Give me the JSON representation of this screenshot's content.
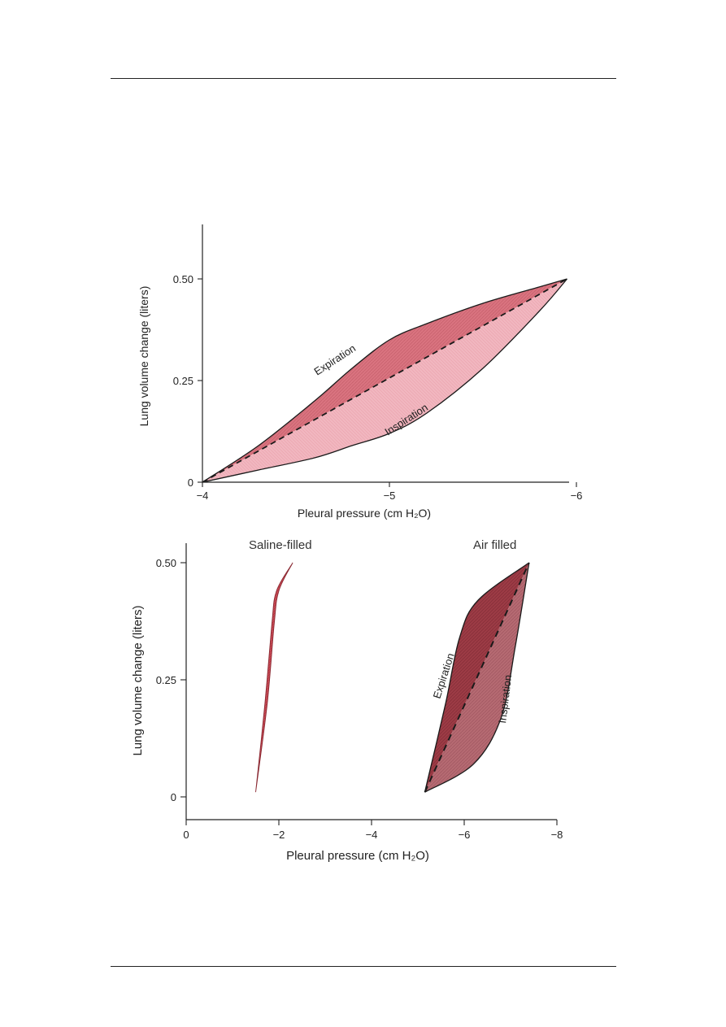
{
  "chart_data": [
    {
      "type": "area",
      "xlabel": "Pleural pressure (cm H₂O)",
      "ylabel": "Lung volume change (liters)",
      "xlim": [
        -4,
        -6
      ],
      "ylim": [
        0,
        0.6
      ],
      "x_ticks": [
        "−4",
        "−5",
        "−6"
      ],
      "y_ticks": [
        "0",
        "0.25",
        "0.50"
      ],
      "series": [
        {
          "name": "Expiration",
          "x": [
            -4,
            -4.3,
            -4.6,
            -4.8,
            -5.0,
            -5.2,
            -5.5,
            -5.8,
            -5.95
          ],
          "y": [
            0,
            0.09,
            0.2,
            0.28,
            0.35,
            0.39,
            0.44,
            0.48,
            0.5
          ]
        },
        {
          "name": "Inspiration",
          "x": [
            -4,
            -4.3,
            -4.6,
            -4.8,
            -5.0,
            -5.2,
            -5.5,
            -5.8,
            -5.95
          ],
          "y": [
            0,
            0.03,
            0.06,
            0.09,
            0.12,
            0.17,
            0.28,
            0.42,
            0.5
          ]
        }
      ],
      "colors": {
        "expiration_fill": "#d9737f",
        "inspiration_fill": "#f1b6bf",
        "stroke": "#1a1a1a"
      }
    },
    {
      "type": "area",
      "xlabel": "Pleural pressure (cm H₂O)",
      "ylabel": "Lung volume change (liters)",
      "xlim": [
        0,
        -8
      ],
      "ylim": [
        -0.05,
        0.5
      ],
      "x_ticks": [
        "0",
        "−2",
        "−4",
        "−6",
        "−8"
      ],
      "y_ticks": [
        "0",
        "0.25",
        "0.50"
      ],
      "panels": [
        {
          "label": "Saline-filled",
          "series": [
            {
              "x": [
                -1.5,
                -1.75,
                -1.9,
                -2.0,
                -2.3
              ],
              "y": [
                0.01,
                0.2,
                0.37,
                0.44,
                0.5
              ]
            },
            {
              "x": [
                -1.5,
                -1.7,
                -1.85,
                -1.95,
                -2.3
              ],
              "y": [
                0.01,
                0.2,
                0.37,
                0.44,
                0.5
              ]
            }
          ],
          "colors": {
            "fill": "#c94a55"
          }
        },
        {
          "label": "Air filled",
          "series": [
            {
              "name": "Expiration",
              "x": [
                -5.15,
                -5.6,
                -5.9,
                -6.3,
                -7.4
              ],
              "y": [
                0.01,
                0.2,
                0.34,
                0.42,
                0.5
              ]
            },
            {
              "name": "Inspiration",
              "x": [
                -5.15,
                -6.2,
                -6.8,
                -7.1,
                -7.4
              ],
              "y": [
                0.01,
                0.07,
                0.17,
                0.32,
                0.5
              ]
            }
          ],
          "colors": {
            "expiration_fill": "#9c3b45",
            "inspiration_fill": "#b56a72"
          }
        }
      ]
    }
  ]
}
